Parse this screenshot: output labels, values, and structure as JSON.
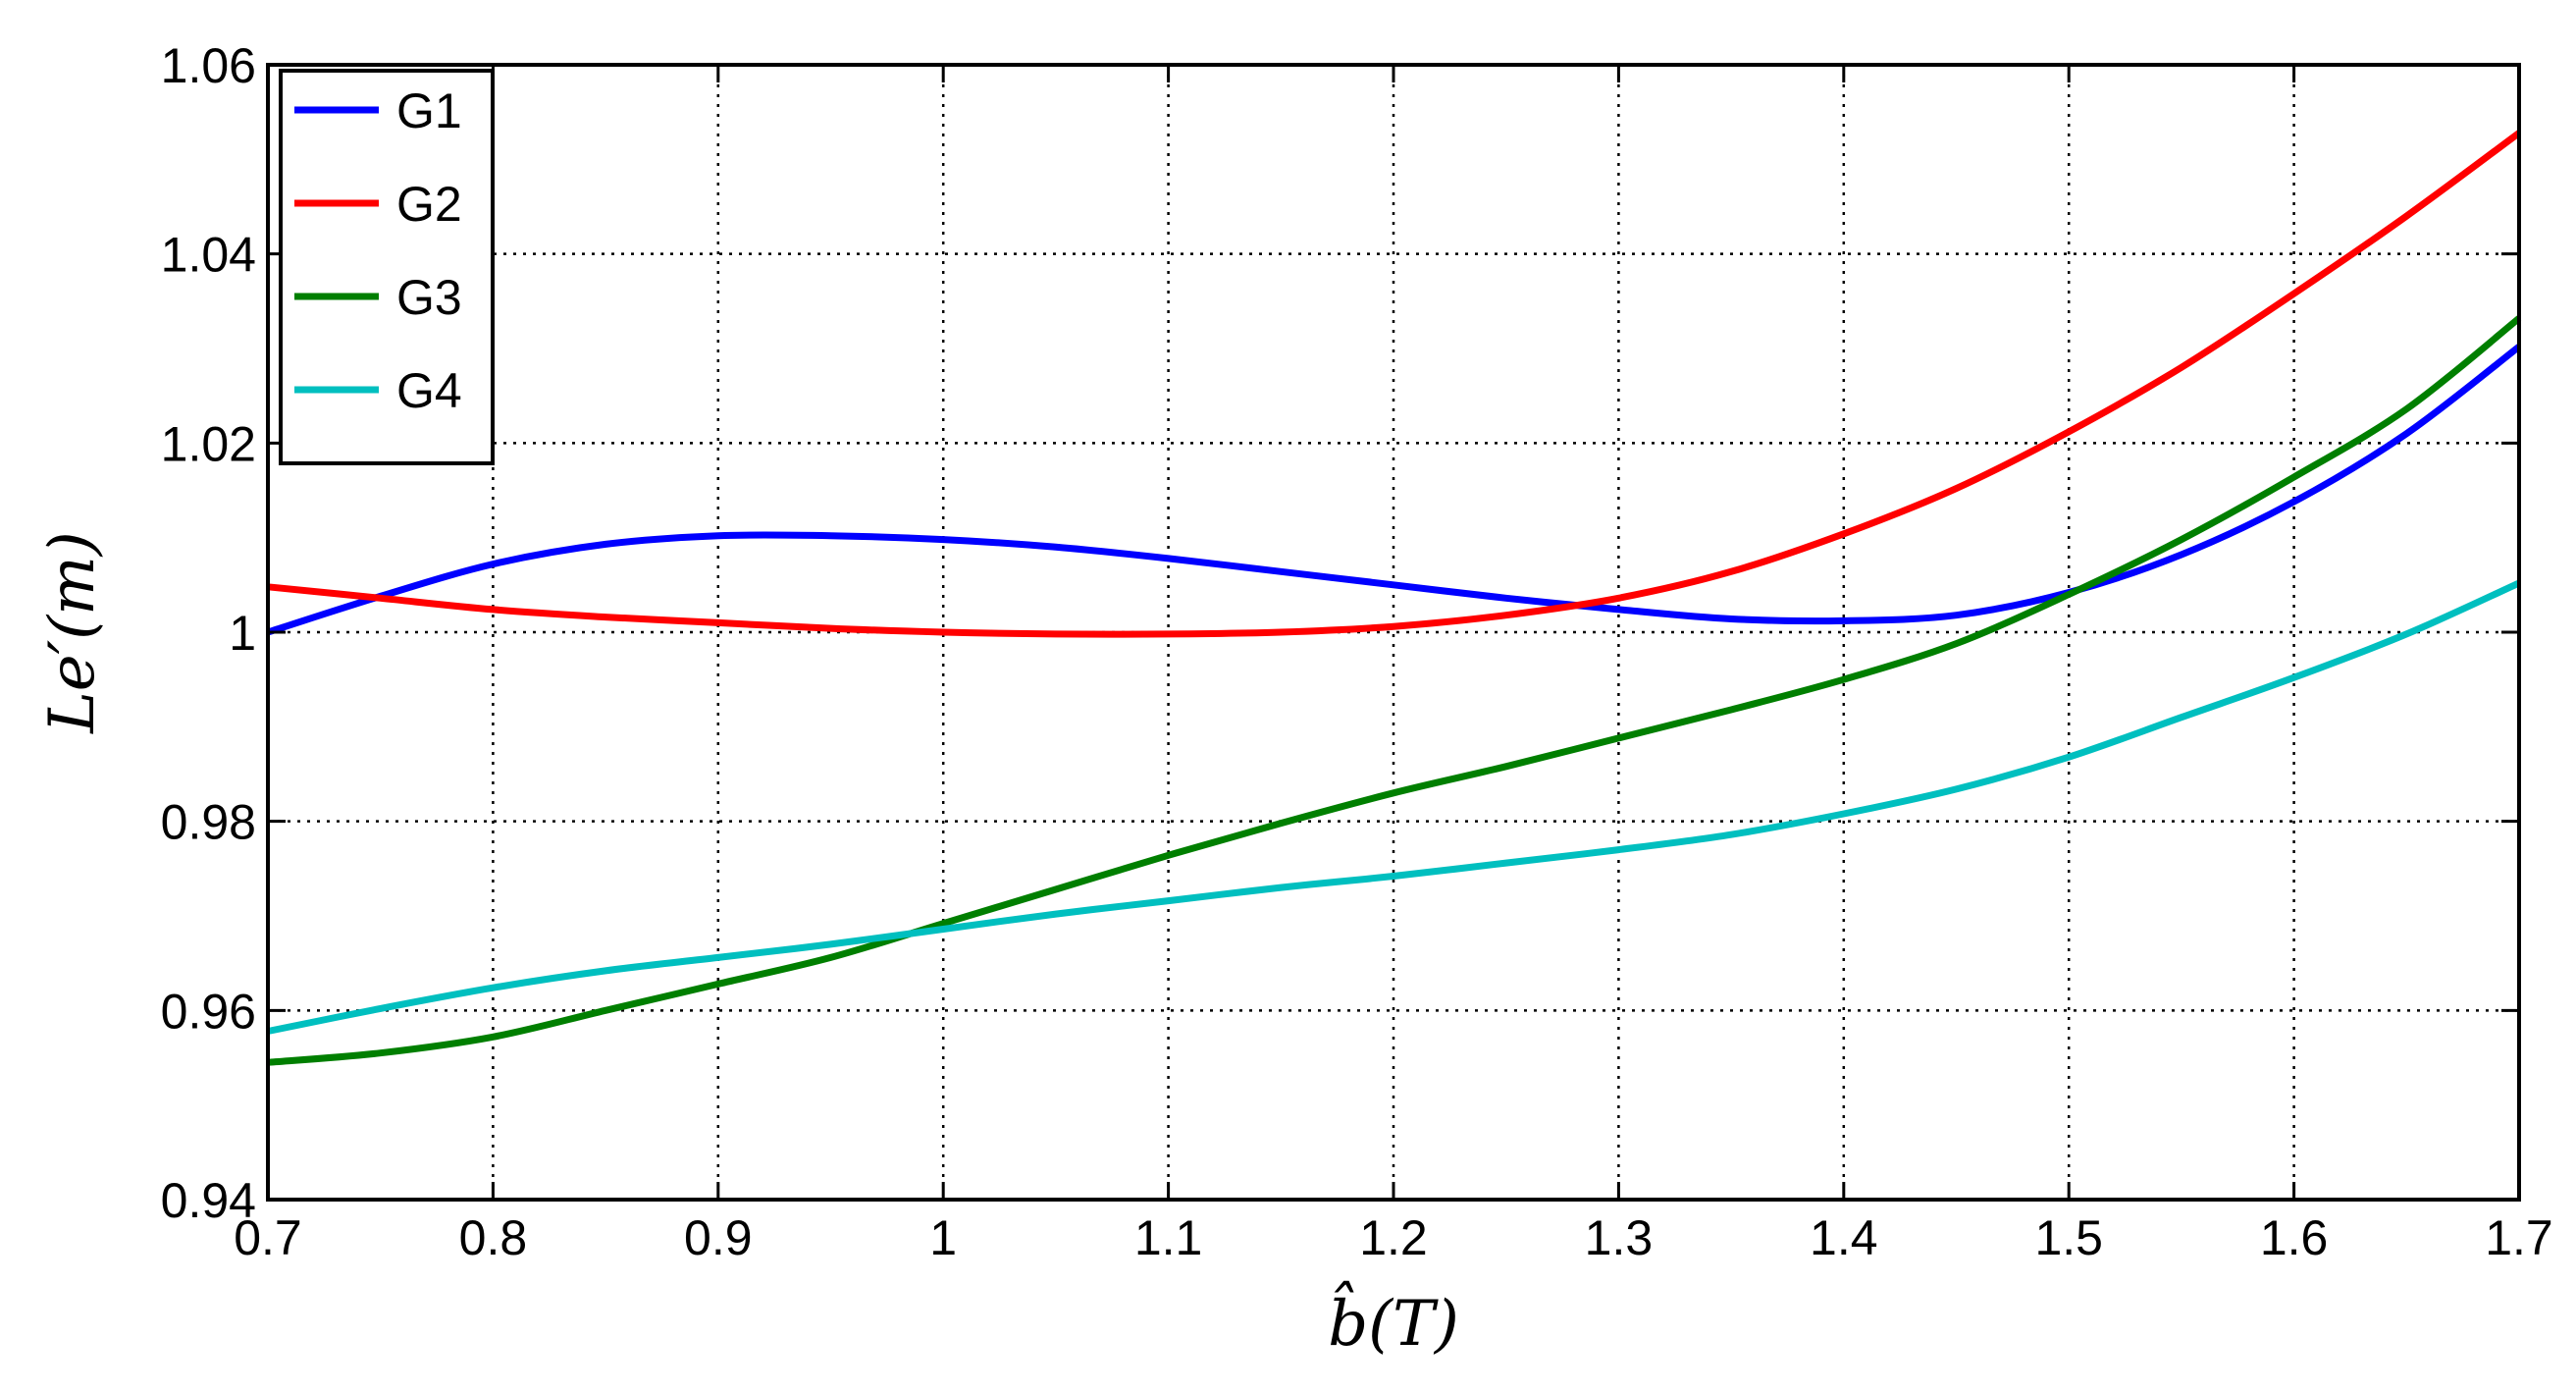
{
  "chart_data": {
    "type": "line",
    "xlabel": "b̂(T)",
    "ylabel": "Le′(m)",
    "xlim": [
      0.7,
      1.7
    ],
    "ylim": [
      0.94,
      1.06
    ],
    "xticks": [
      0.7,
      0.8,
      0.9,
      1,
      1.1,
      1.2,
      1.3,
      1.4,
      1.5,
      1.6,
      1.7
    ],
    "xtick_labels": [
      "0.7",
      "0.8",
      "0.9",
      "1",
      "1.1",
      "1.2",
      "1.3",
      "1.4",
      "1.5",
      "1.6",
      "1.7"
    ],
    "yticks": [
      0.94,
      0.96,
      0.98,
      1.0,
      1.02,
      1.04,
      1.06
    ],
    "ytick_labels": [
      "0.94",
      "0.96",
      "0.98",
      "1",
      "1.02",
      "1.04",
      "1.06"
    ],
    "grid": true,
    "legend_position": "top-left",
    "x": [
      0.7,
      0.75,
      0.8,
      0.85,
      0.9,
      0.95,
      1.0,
      1.05,
      1.1,
      1.15,
      1.2,
      1.25,
      1.3,
      1.35,
      1.4,
      1.45,
      1.5,
      1.55,
      1.6,
      1.65,
      1.7
    ],
    "series": [
      {
        "name": "G1",
        "color": "#0000ff",
        "values": [
          1.0,
          1.0038,
          1.0072,
          1.0093,
          1.0102,
          1.0102,
          1.0098,
          1.009,
          1.0078,
          1.0064,
          1.005,
          1.0036,
          1.0024,
          1.0014,
          1.0012,
          1.0018,
          1.0042,
          1.0082,
          1.0138,
          1.021,
          1.0302
        ]
      },
      {
        "name": "G2",
        "color": "#ff0000",
        "values": [
          1.0048,
          1.0036,
          1.0024,
          1.0016,
          1.001,
          1.0004,
          1.0,
          0.9998,
          0.9998,
          1.0,
          1.0006,
          1.0018,
          1.0036,
          1.0064,
          1.0104,
          1.0152,
          1.0212,
          1.028,
          1.0358,
          1.044,
          1.0528
        ]
      },
      {
        "name": "G3",
        "color": "#007f00",
        "values": [
          0.9545,
          0.9555,
          0.9572,
          0.96,
          0.9628,
          0.9656,
          0.9692,
          0.9728,
          0.9764,
          0.9798,
          0.983,
          0.9858,
          0.9888,
          0.9918,
          0.995,
          0.9988,
          1.004,
          1.0098,
          1.0164,
          1.0236,
          1.0332
        ]
      },
      {
        "name": "G4",
        "color": "#00bfbf",
        "values": [
          0.9578,
          0.9602,
          0.9624,
          0.9642,
          0.9656,
          0.967,
          0.9686,
          0.9702,
          0.9716,
          0.973,
          0.9742,
          0.9756,
          0.977,
          0.9786,
          0.9808,
          0.9834,
          0.9868,
          0.991,
          0.9952,
          0.9998,
          1.0052
        ]
      }
    ]
  }
}
